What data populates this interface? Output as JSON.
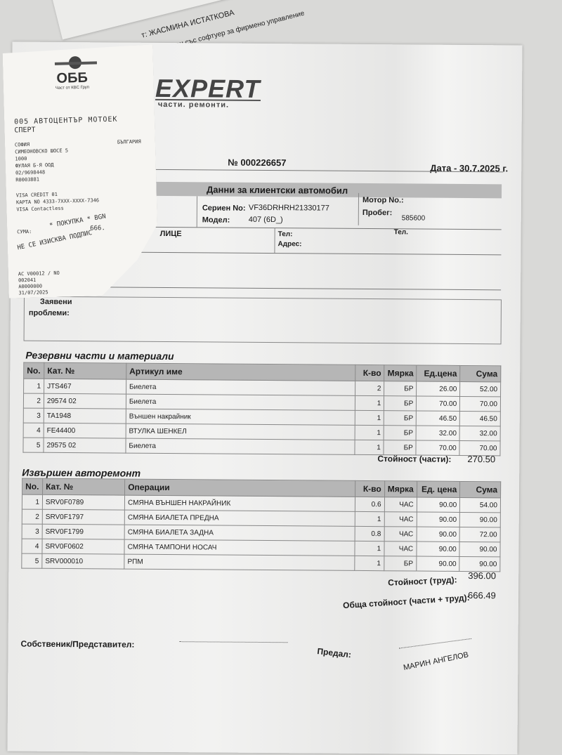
{
  "back_document": {
    "line1": "т:   ЖАСМИНА ИСТАТКОВА",
    "line2": "аден със софтуер за фирмено управление"
  },
  "invoice": {
    "logo": "EXPERT",
    "logo_tagline": "части. ремонти.",
    "number": "№ 000226657",
    "date": "Дата - 30.7.2025 г.",
    "vehicle": {
      "header": "Данни за клиентски автомобил",
      "serial_label": "Сериен No:",
      "serial_value": "VF36DRHRH21330177",
      "model_label": "Модел:",
      "model_value": "407 (6D_)",
      "engine_label": "Мотор No.:",
      "mileage_label": "Пробег:",
      "mileage_value": "585600"
    },
    "client": {
      "person_label": "ЛИЦЕ",
      "phone_label": "Тел:",
      "address_label": "Адрес:",
      "phone2_label": "Тел."
    },
    "problems_label_1": "Заявени",
    "problems_label_2": "проблеми:",
    "parts": {
      "title": "Резервни части и материали",
      "columns": [
        "No.",
        "Кат. №",
        "Артикул име",
        "К-во",
        "Мярка",
        "Ед.цена",
        "Сума"
      ],
      "rows": [
        [
          "1",
          "JTS467",
          "Биелета",
          "2",
          "БР",
          "26.00",
          "52.00"
        ],
        [
          "2",
          "29574 02",
          "Биелета",
          "1",
          "БР",
          "70.00",
          "70.00"
        ],
        [
          "3",
          "TA1948",
          "Външен накрайник",
          "1",
          "БР",
          "46.50",
          "46.50"
        ],
        [
          "4",
          "FE44400",
          "ВТУЛКА ШЕНКЕЛ",
          "1",
          "БР",
          "32.00",
          "32.00"
        ],
        [
          "5",
          "29575 02",
          "Биелета",
          "1",
          "БР",
          "70.00",
          "70.00"
        ]
      ],
      "total_label": "Стойност (части):",
      "total_value": "270.50"
    },
    "labor": {
      "title": "Извършен авторемонт",
      "columns": [
        "No.",
        "Кат. №",
        "Операции",
        "К-во",
        "Мярка",
        "Ед. цена",
        "Сума"
      ],
      "rows": [
        [
          "1",
          "SRV0F0789",
          "СМЯНА ВЪНШЕН НАКРАЙНИК",
          "0.6",
          "ЧАС",
          "90.00",
          "54.00"
        ],
        [
          "2",
          "SRV0F1797",
          "СМЯНА БИАЛЕТА ПРЕДНА",
          "1",
          "ЧАС",
          "90.00",
          "90.00"
        ],
        [
          "3",
          "SRV0F1799",
          "СМЯНА БИАЛЕТА ЗАДНА",
          "0.8",
          "ЧАС",
          "90.00",
          "72.00"
        ],
        [
          "4",
          "SRV0F0602",
          "СМЯНА ТАМПОНИ НОСАЧ",
          "1",
          "ЧАС",
          "90.00",
          "90.00"
        ],
        [
          "5",
          "SRV000010",
          "РПМ",
          "1",
          "БР",
          "90.00",
          "90.00"
        ]
      ],
      "total_label": "Стойност (труд):",
      "total_value": "396.00"
    },
    "grand_total_label": "Обща стойност (части + труд):",
    "grand_total_value": "666.49",
    "owner_label": "Собственик/Представител:",
    "handed_label": "Предал:",
    "handed_name": "МАРИН АНГЕЛОВ"
  },
  "receipt": {
    "bank_logo": "ОББ",
    "bank_tagline": "Част от КВС Груп",
    "merchant_1": "005 АВТОЦЕНТЪР МОТОЕК",
    "merchant_2": "СПЕРТ",
    "city": "СОФИЯ",
    "country": "БЪЛГАРИЯ",
    "street": "СИМЕОНОВСКО ШОСЕ 5",
    "postcode": "1000",
    "company": "ФУЛАЯ Б-Я ООД",
    "phone": "02/9698448",
    "terminal": "R0003881",
    "card_type": "VISA CREDIT 01",
    "card_number": "КАРТА NO 4333-7XXX-XXXX-7346",
    "contactless": "VISA Contactless",
    "purchase": "* ПОКУПКА * BGN",
    "amount_label": "СУМА:",
    "amount_value": "666.",
    "no_signature": "НЕ СЕ ИЗИСКВА ПОДПИС",
    "ac_line": "AC V00012 / NO",
    "code": "002041",
    "aid": "A0000000",
    "date": "31/07/2025"
  }
}
